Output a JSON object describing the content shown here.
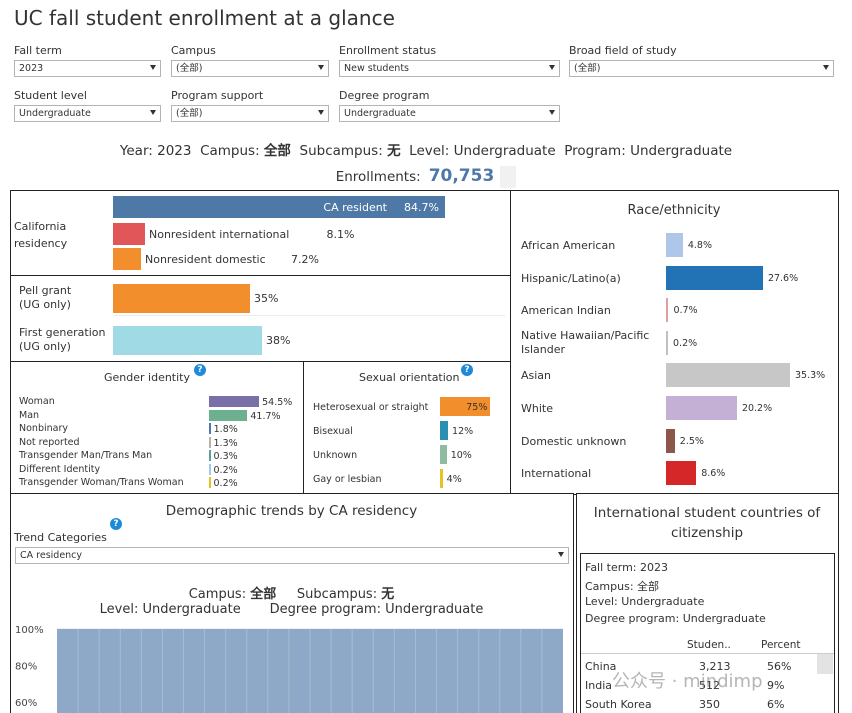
{
  "title": "UC fall student enrollment at a glance",
  "filters": {
    "fall_term": {
      "label": "Fall term",
      "value": "2023"
    },
    "campus": {
      "label": "Campus",
      "value": "(全部)"
    },
    "enrollment_status": {
      "label": "Enrollment status",
      "value": "New students"
    },
    "field": {
      "label": "Broad field of study",
      "value": "(全部)"
    },
    "student_level": {
      "label": "Student level",
      "value": "Undergraduate"
    },
    "program_support": {
      "label": "Program support",
      "value": "(全部)"
    },
    "degree_program": {
      "label": "Degree program",
      "value": "Undergraduate"
    }
  },
  "summary": {
    "year_label": "Year:",
    "year": "2023",
    "campus_label": "Campus:",
    "campus": "全部",
    "subcampus_label": "Subcampus:",
    "subcampus": "无",
    "level_label": "Level:",
    "level": "Undergraduate",
    "program_label": "Program:",
    "program": "Undergraduate"
  },
  "enrollments": {
    "label": "Enrollments:",
    "value": "70,753"
  },
  "residency": {
    "title": "California residency",
    "bars": [
      {
        "label": "CA resident",
        "pct": "84.7%",
        "value": 84.7,
        "color": "#4e79a7"
      },
      {
        "label": "Nonresident international",
        "pct": "8.1%",
        "value": 8.1,
        "color": "#e15759"
      },
      {
        "label": "Nonresident domestic",
        "pct": "7.2%",
        "value": 7.2,
        "color": "#f28e2b"
      }
    ]
  },
  "pell": {
    "label1": "Pell grant",
    "label2": "(UG only)",
    "pct": "35%",
    "value": 35,
    "color": "#f28e2b"
  },
  "firstgen": {
    "label1": "First generation",
    "label2": "(UG only)",
    "pct": "38%",
    "value": 38,
    "color": "#9fdae5"
  },
  "gender": {
    "title": "Gender identity",
    "items": [
      {
        "label": "Woman",
        "pct": "54.5%",
        "value": 54.5,
        "color": "#7b6fa8"
      },
      {
        "label": "Man",
        "pct": "41.7%",
        "value": 41.7,
        "color": "#6cb08f"
      },
      {
        "label": "Nonbinary",
        "pct": "1.8%",
        "value": 1.8,
        "color": "#4e79a7"
      },
      {
        "label": "Not reported",
        "pct": "1.3%",
        "value": 1.3,
        "color": "#bab0ac"
      },
      {
        "label": "Transgender Man/Trans Man",
        "pct": "0.3%",
        "value": 0.3,
        "color": "#5f9ea0"
      },
      {
        "label": "Different Identity",
        "pct": "0.2%",
        "value": 0.2,
        "color": "#9ecae9"
      },
      {
        "label": "Transgender Woman/Trans Woman",
        "pct": "0.2%",
        "value": 0.2,
        "color": "#e6c229"
      }
    ]
  },
  "sexual": {
    "title": "Sexual orientation",
    "items": [
      {
        "label": "Heterosexual or straight",
        "pct": "75%",
        "value": 75,
        "color": "#f28e2b"
      },
      {
        "label": "Bisexual",
        "pct": "12%",
        "value": 12,
        "color": "#2a8fb0"
      },
      {
        "label": "Unknown",
        "pct": "10%",
        "value": 10,
        "color": "#8fbc9f"
      },
      {
        "label": "Gay or lesbian",
        "pct": "4%",
        "value": 4,
        "color": "#e6c229"
      }
    ]
  },
  "race": {
    "title": "Race/ethnicity",
    "items": [
      {
        "label1": "African American",
        "label2": "",
        "pct": "4.8%",
        "value": 4.8,
        "color": "#aec7e8"
      },
      {
        "label1": "Hispanic/Latino(a)",
        "label2": "",
        "pct": "27.6%",
        "value": 27.6,
        "color": "#2272b6"
      },
      {
        "label1": "American Indian",
        "label2": "",
        "pct": "0.7%",
        "value": 0.7,
        "color": "#e0a0a0"
      },
      {
        "label1": "Native Hawaiian/Pacific",
        "label2": "Islander",
        "pct": "0.2%",
        "value": 0.2,
        "color": "#c0c0c0"
      },
      {
        "label1": "Asian",
        "label2": "",
        "pct": "35.3%",
        "value": 35.3,
        "color": "#c7c7c7"
      },
      {
        "label1": "White",
        "label2": "",
        "pct": "20.2%",
        "value": 20.2,
        "color": "#c5b0d5"
      },
      {
        "label1": "Domestic unknown",
        "label2": "",
        "pct": "2.5%",
        "value": 2.5,
        "color": "#8c564b"
      },
      {
        "label1": "International",
        "label2": "",
        "pct": "8.6%",
        "value": 8.6,
        "color": "#d62728"
      }
    ]
  },
  "trends": {
    "title": "Demographic trends by CA residency",
    "category_label": "Trend Categories",
    "category_value": "CA residency",
    "campus_label": "Campus:",
    "campus": "全部",
    "subcampus_label": "Subcampus:",
    "subcampus": "无",
    "level_label": "Level:",
    "level": "Undergraduate",
    "program_label": "Degree program:",
    "program": "Undergraduate",
    "fill_color": "#8da9c7"
  },
  "chart_data": {
    "type": "area",
    "title": "",
    "y_ticks": [
      "100%",
      "80%",
      "60%"
    ],
    "ylim": [
      60,
      100
    ],
    "series": [
      {
        "values": [
          100
        ]
      }
    ]
  },
  "intl": {
    "title1": "International student countries of",
    "title2": "citizenship",
    "info": {
      "fall_term": "Fall term: 2023",
      "campus": "Campus: 全部",
      "level": "Level: Undergraduate",
      "program": "Degree program: Undergraduate"
    },
    "col_students": "Studen..",
    "col_percent": "Percent",
    "rows": [
      {
        "country": "China",
        "students": "3,213",
        "percent": "56%"
      },
      {
        "country": "India",
        "students": "512",
        "percent": "9%"
      },
      {
        "country": "South Korea",
        "students": "350",
        "percent": "6%"
      }
    ]
  },
  "watermark": "公众号 · mindimp"
}
